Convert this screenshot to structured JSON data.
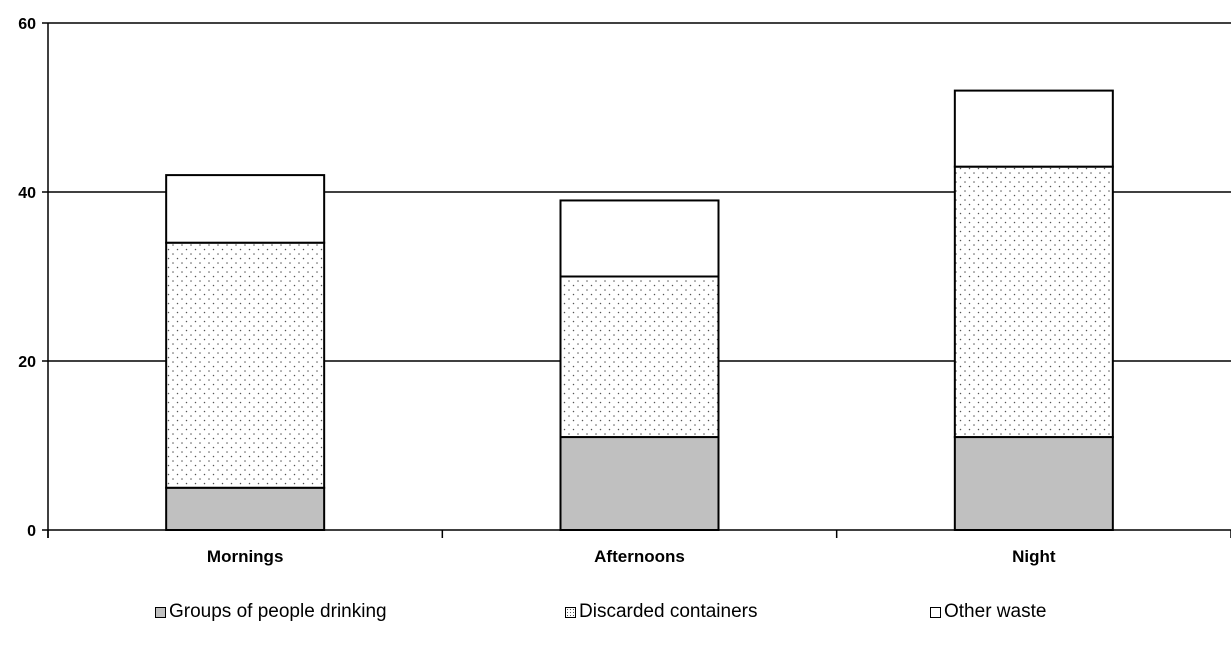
{
  "chart_data": {
    "type": "bar",
    "stacked": true,
    "title": "",
    "xlabel": "",
    "ylabel": "",
    "categories": [
      "Mornings",
      "Afternoons",
      "Night"
    ],
    "series": [
      {
        "name": "Groups of people drinking",
        "values": [
          5,
          11,
          11
        ],
        "color": "#c0c0c0",
        "pattern": "solid"
      },
      {
        "name": "Discarded  containers",
        "values": [
          29,
          19,
          32
        ],
        "color": "#ffffff",
        "pattern": "dotted"
      },
      {
        "name": "Other waste",
        "values": [
          8,
          9,
          9
        ],
        "color": "#ffffff",
        "pattern": "none"
      }
    ],
    "ylim": [
      0,
      60
    ],
    "yticks": [
      "0",
      "20",
      "40",
      "60"
    ],
    "grid": true,
    "legend_position": "bottom"
  }
}
